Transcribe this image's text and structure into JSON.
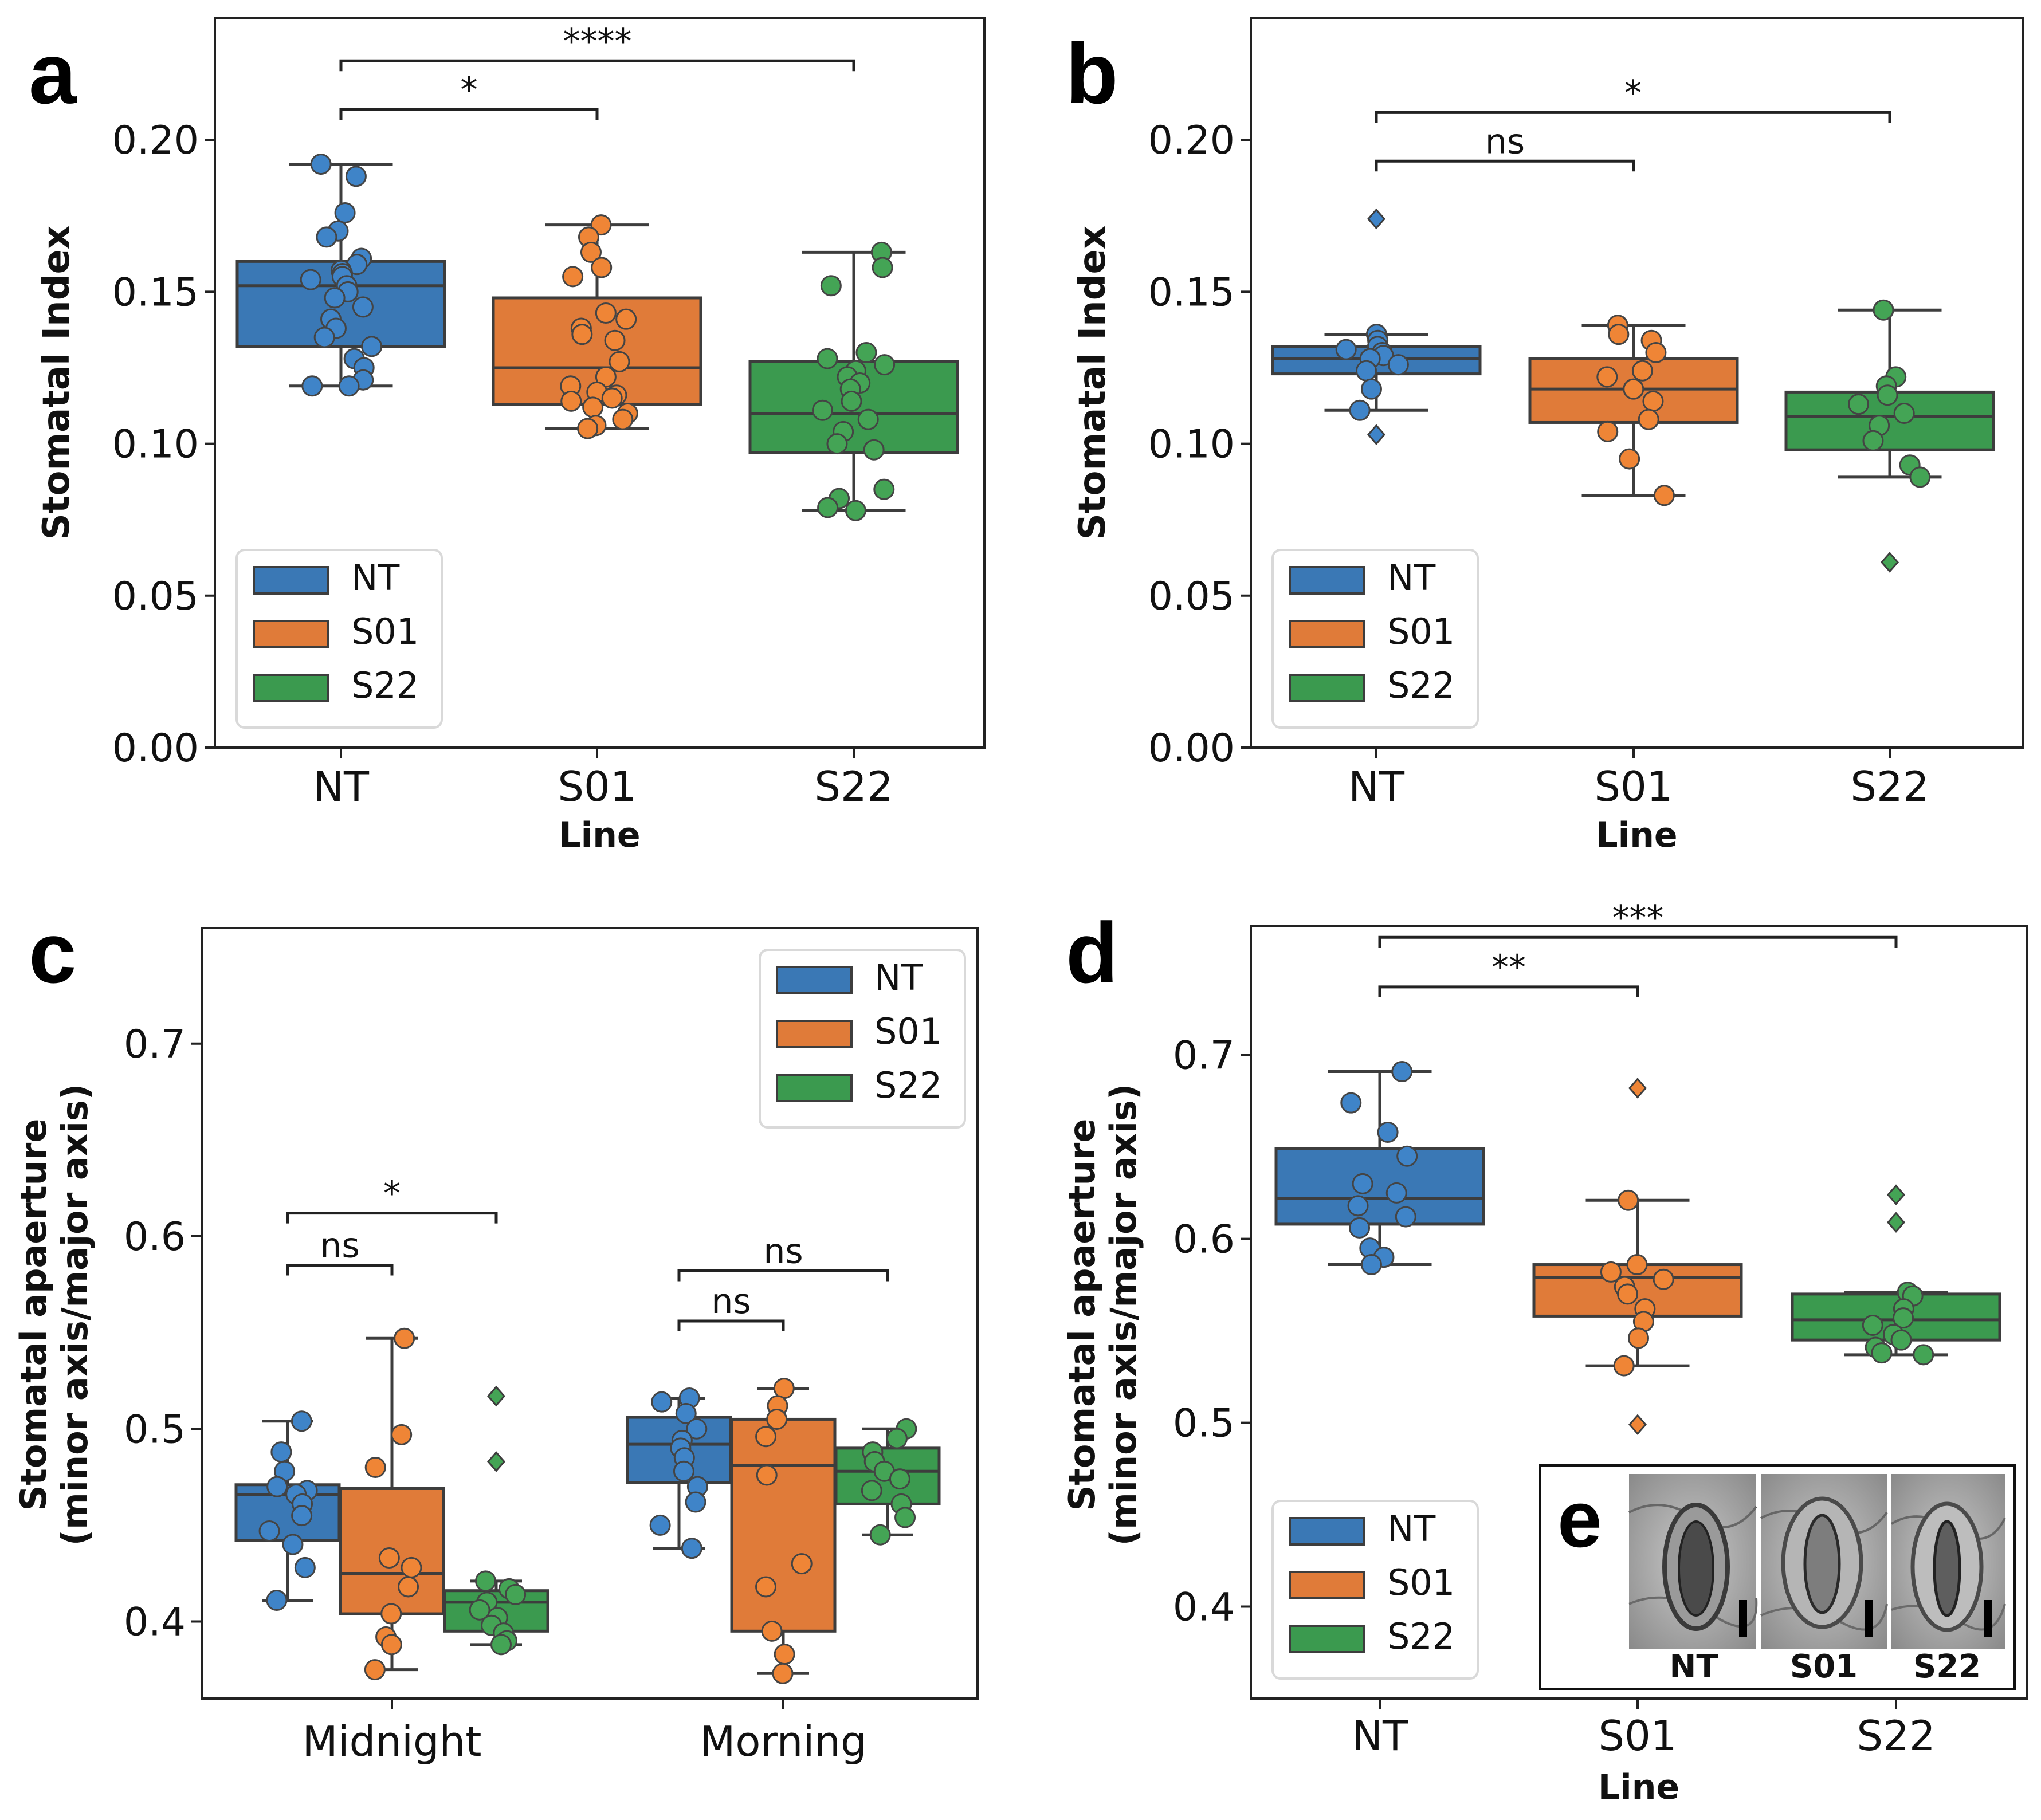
{
  "colors": {
    "NT": "#3a78b5",
    "S01": "#e07b39",
    "S22": "#3b9a4f",
    "NT_pt": "#3f84c8",
    "S01_pt": "#ef8536",
    "S22_pt": "#44a455"
  },
  "chart_data": [
    {
      "panel": "a",
      "type": "box",
      "ylabel": "Stomatal Index",
      "xlabel": "Line",
      "ylim": [
        0,
        0.24
      ],
      "yticks": [
        "0.00",
        "0.05",
        "0.10",
        "0.15",
        "0.20"
      ],
      "ytick_values": [
        0,
        0.05,
        0.1,
        0.15,
        0.2
      ],
      "categories": [
        "NT",
        "S01",
        "S22"
      ],
      "legend": {
        "entries": [
          "NT",
          "S01",
          "S22"
        ],
        "position": "lower-left"
      },
      "boxes": [
        {
          "category": "NT",
          "whislo": 0.119,
          "q1": 0.132,
          "med": 0.152,
          "q3": 0.16,
          "whishi": 0.192,
          "fliers": []
        },
        {
          "category": "S01",
          "whislo": 0.105,
          "q1": 0.113,
          "med": 0.125,
          "q3": 0.148,
          "whishi": 0.172,
          "fliers": []
        },
        {
          "category": "S22",
          "whislo": 0.078,
          "q1": 0.097,
          "med": 0.11,
          "q3": 0.127,
          "whishi": 0.163,
          "fliers": []
        }
      ],
      "points": {
        "NT": [
          0.192,
          0.188,
          0.176,
          0.17,
          0.168,
          0.161,
          0.159,
          0.157,
          0.156,
          0.155,
          0.154,
          0.152,
          0.15,
          0.148,
          0.145,
          0.141,
          0.138,
          0.135,
          0.132,
          0.128,
          0.125,
          0.121,
          0.119,
          0.119
        ],
        "S01": [
          0.172,
          0.168,
          0.163,
          0.158,
          0.155,
          0.143,
          0.141,
          0.138,
          0.136,
          0.134,
          0.127,
          0.122,
          0.119,
          0.117,
          0.116,
          0.115,
          0.114,
          0.112,
          0.11,
          0.108,
          0.106,
          0.105
        ],
        "S22": [
          0.163,
          0.158,
          0.152,
          0.13,
          0.128,
          0.126,
          0.124,
          0.122,
          0.12,
          0.118,
          0.114,
          0.111,
          0.108,
          0.104,
          0.1,
          0.098,
          0.085,
          0.082,
          0.079,
          0.078
        ]
      },
      "significance": [
        {
          "from": "NT",
          "to": "S01",
          "label": "*",
          "y": 0.21
        },
        {
          "from": "NT",
          "to": "S22",
          "label": "****",
          "y": 0.226
        }
      ]
    },
    {
      "panel": "b",
      "type": "box",
      "ylabel": "Stomatal Index",
      "xlabel": "Line",
      "ylim": [
        0,
        0.24
      ],
      "yticks": [
        "0.00",
        "0.05",
        "0.10",
        "0.15",
        "0.20"
      ],
      "ytick_values": [
        0,
        0.05,
        0.1,
        0.15,
        0.2
      ],
      "categories": [
        "NT",
        "S01",
        "S22"
      ],
      "legend": {
        "entries": [
          "NT",
          "S01",
          "S22"
        ],
        "position": "lower-left"
      },
      "boxes": [
        {
          "category": "NT",
          "whislo": 0.111,
          "q1": 0.123,
          "med": 0.128,
          "q3": 0.132,
          "whishi": 0.136,
          "fliers": [
            0.174,
            0.103
          ]
        },
        {
          "category": "S01",
          "whislo": 0.083,
          "q1": 0.107,
          "med": 0.118,
          "q3": 0.128,
          "whishi": 0.139,
          "fliers": []
        },
        {
          "category": "S22",
          "whislo": 0.089,
          "q1": 0.098,
          "med": 0.109,
          "q3": 0.117,
          "whishi": 0.144,
          "fliers": [
            0.061
          ]
        }
      ],
      "points": {
        "NT": [
          0.136,
          0.134,
          0.132,
          0.131,
          0.13,
          0.129,
          0.128,
          0.126,
          0.124,
          0.118,
          0.111
        ],
        "S01": [
          0.139,
          0.136,
          0.134,
          0.13,
          0.124,
          0.122,
          0.118,
          0.114,
          0.108,
          0.104,
          0.095,
          0.083
        ],
        "S22": [
          0.144,
          0.122,
          0.119,
          0.116,
          0.113,
          0.11,
          0.106,
          0.101,
          0.093,
          0.089
        ]
      },
      "significance": [
        {
          "from": "NT",
          "to": "S01",
          "label": "ns",
          "y": 0.193
        },
        {
          "from": "NT",
          "to": "S22",
          "label": "*",
          "y": 0.209
        }
      ]
    },
    {
      "panel": "c",
      "type": "box",
      "ylabel": "Stomatal apaerture (minor axis/major axis)",
      "ylabel_lines": [
        "Stomatal apaerture",
        "(minor axis/major axis)"
      ],
      "xlabel": "",
      "ylim": [
        0.36,
        0.76
      ],
      "yticks": [
        "0.4",
        "0.5",
        "0.6",
        "0.7"
      ],
      "ytick_values": [
        0.4,
        0.5,
        0.6,
        0.7
      ],
      "categories": [
        "Midnight",
        "Morning"
      ],
      "hue": [
        "NT",
        "S01",
        "S22"
      ],
      "legend": {
        "entries": [
          "NT",
          "S01",
          "S22"
        ],
        "position": "top-right"
      },
      "boxes": [
        {
          "category": "Midnight",
          "hue": "NT",
          "whislo": 0.411,
          "q1": 0.442,
          "med": 0.466,
          "q3": 0.471,
          "whishi": 0.504,
          "fliers": []
        },
        {
          "category": "Midnight",
          "hue": "S01",
          "whislo": 0.375,
          "q1": 0.404,
          "med": 0.425,
          "q3": 0.469,
          "whishi": 0.547,
          "fliers": []
        },
        {
          "category": "Midnight",
          "hue": "S22",
          "whislo": 0.388,
          "q1": 0.395,
          "med": 0.41,
          "q3": 0.416,
          "whishi": 0.421,
          "fliers": [
            0.517,
            0.483
          ]
        },
        {
          "category": "Morning",
          "hue": "NT",
          "whislo": 0.438,
          "q1": 0.472,
          "med": 0.492,
          "q3": 0.506,
          "whishi": 0.516,
          "fliers": []
        },
        {
          "category": "Morning",
          "hue": "S01",
          "whislo": 0.373,
          "q1": 0.395,
          "med": 0.481,
          "q3": 0.505,
          "whishi": 0.521,
          "fliers": []
        },
        {
          "category": "Morning",
          "hue": "S22",
          "whislo": 0.445,
          "q1": 0.461,
          "med": 0.478,
          "q3": 0.49,
          "whishi": 0.5,
          "fliers": []
        }
      ],
      "points": {
        "Midnight_NT": [
          0.504,
          0.488,
          0.478,
          0.47,
          0.468,
          0.466,
          0.461,
          0.455,
          0.447,
          0.44,
          0.428,
          0.411
        ],
        "Midnight_S01": [
          0.547,
          0.497,
          0.48,
          0.433,
          0.428,
          0.418,
          0.404,
          0.392,
          0.388,
          0.375
        ],
        "Midnight_S22": [
          0.421,
          0.417,
          0.414,
          0.41,
          0.406,
          0.402,
          0.398,
          0.394,
          0.39,
          0.388
        ],
        "Morning_NT": [
          0.516,
          0.514,
          0.508,
          0.5,
          0.494,
          0.49,
          0.485,
          0.478,
          0.47,
          0.462,
          0.45,
          0.438
        ],
        "Morning_S01": [
          0.521,
          0.512,
          0.505,
          0.496,
          0.476,
          0.43,
          0.418,
          0.395,
          0.383,
          0.373
        ],
        "Morning_S22": [
          0.5,
          0.495,
          0.488,
          0.483,
          0.478,
          0.474,
          0.468,
          0.461,
          0.454,
          0.445
        ]
      },
      "significance": [
        {
          "group": "Midnight",
          "from": "NT",
          "to": "S01",
          "label": "ns",
          "y": 0.585
        },
        {
          "group": "Midnight",
          "from": "NT",
          "to": "S22",
          "label": "*",
          "y": 0.612
        },
        {
          "group": "Morning",
          "from": "NT",
          "to": "S01",
          "label": "ns",
          "y": 0.556
        },
        {
          "group": "Morning",
          "from": "NT",
          "to": "S22",
          "label": "ns",
          "y": 0.582
        }
      ]
    },
    {
      "panel": "d",
      "type": "box",
      "ylabel": "Stomatal apaerture (minor axis/major axis)",
      "ylabel_lines": [
        "Stomatal apaerture",
        "(minor axis/major axis)"
      ],
      "xlabel": "Line",
      "ylim": [
        0.35,
        0.77
      ],
      "yticks": [
        "0.4",
        "0.5",
        "0.6",
        "0.7"
      ],
      "ytick_values": [
        0.4,
        0.5,
        0.6,
        0.7
      ],
      "categories": [
        "NT",
        "S01",
        "S22"
      ],
      "legend": {
        "entries": [
          "NT",
          "S01",
          "S22"
        ],
        "position": "lower-left"
      },
      "boxes": [
        {
          "category": "NT",
          "whislo": 0.586,
          "q1": 0.608,
          "med": 0.622,
          "q3": 0.649,
          "whishi": 0.691,
          "fliers": []
        },
        {
          "category": "S01",
          "whislo": 0.531,
          "q1": 0.558,
          "med": 0.579,
          "q3": 0.586,
          "whishi": 0.621,
          "fliers": [
            0.682,
            0.499
          ]
        },
        {
          "category": "S22",
          "whislo": 0.537,
          "q1": 0.545,
          "med": 0.556,
          "q3": 0.57,
          "whishi": 0.571,
          "fliers": [
            0.624,
            0.609
          ]
        }
      ],
      "points": {
        "NT": [
          0.691,
          0.674,
          0.658,
          0.645,
          0.63,
          0.625,
          0.618,
          0.612,
          0.606,
          0.595,
          0.59,
          0.586
        ],
        "S01": [
          0.621,
          0.586,
          0.582,
          0.578,
          0.574,
          0.57,
          0.562,
          0.555,
          0.546,
          0.531
        ],
        "S22": [
          0.571,
          0.569,
          0.562,
          0.557,
          0.553,
          0.548,
          0.545,
          0.541,
          0.538,
          0.537
        ]
      },
      "significance": [
        {
          "from": "NT",
          "to": "S01",
          "label": "**",
          "y": 0.737
        },
        {
          "from": "NT",
          "to": "S22",
          "label": "***",
          "y": 0.764
        }
      ]
    }
  ],
  "panel_letters": {
    "a": "a",
    "b": "b",
    "c": "c",
    "d": "d",
    "e": "e"
  },
  "inset_e": {
    "labels": [
      "NT",
      "S01",
      "S22"
    ]
  }
}
